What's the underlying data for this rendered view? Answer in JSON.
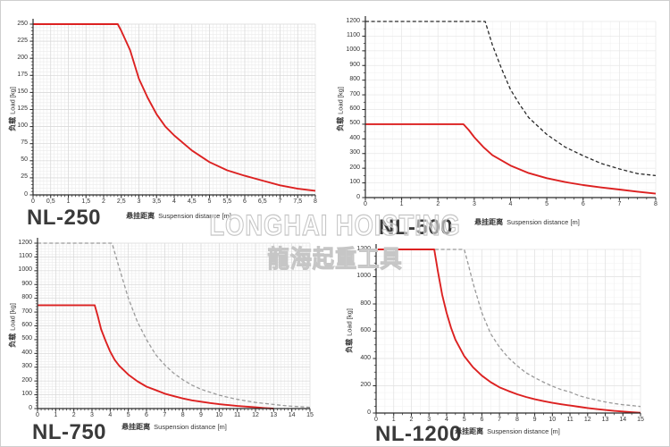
{
  "watermark": {
    "line1": "LONGHAI HOISTING",
    "line2": "龍海起重工具"
  },
  "colors": {
    "red": "#dc2121",
    "dash_dark": "#2a2a2a",
    "dash_gray": "#9a9a9a",
    "axis": "#2b2b2b",
    "text": "#333333",
    "title": "#3a3a3a",
    "watermark_stroke": "#c6c6c6"
  },
  "chart_data": [
    {
      "type": "line",
      "title": "NL-250",
      "xlabel_cn": "悬挂距离",
      "xlabel_en": "Suspension distance [m]",
      "ylabel_cn": "负载",
      "ylabel_en": "Load [kg]",
      "xlim": [
        0,
        8
      ],
      "ylim": [
        0,
        250
      ],
      "xticks": [
        "0",
        "0,5",
        "1",
        "1,5",
        "2",
        "2,5",
        "3",
        "3,5",
        "4",
        "4,5",
        "5",
        "5,5",
        "6",
        "6,5",
        "7",
        "7,5",
        "8"
      ],
      "yticks": [
        0,
        25,
        50,
        75,
        100,
        125,
        150,
        175,
        200,
        225,
        250
      ],
      "x_minor": 5,
      "y_minor": 5,
      "grid": {
        "on": true,
        "minor": "#ebebeb",
        "major": "#d8d8d8"
      },
      "legend": "none",
      "series": [
        {
          "name": "capacity_solid",
          "style": "solid",
          "color": "red",
          "points": [
            [
              0,
              250
            ],
            [
              2.4,
              250
            ],
            [
              2.5,
              240
            ],
            [
              2.75,
              212
            ],
            [
              3,
              170
            ],
            [
              3.25,
              142
            ],
            [
              3.5,
              118
            ],
            [
              3.75,
              100
            ],
            [
              4,
              87
            ],
            [
              4.5,
              65
            ],
            [
              5,
              48
            ],
            [
              5.5,
              36
            ],
            [
              6,
              28
            ],
            [
              6.5,
              21
            ],
            [
              7,
              14
            ],
            [
              7.5,
              9
            ],
            [
              8,
              6
            ]
          ]
        }
      ]
    },
    {
      "type": "line",
      "title": "NL-500",
      "xlabel_cn": "悬挂距离",
      "xlabel_en": "Suspension distance [m]",
      "ylabel_cn": "负载",
      "ylabel_en": "Load [kg]",
      "xlim": [
        0,
        8
      ],
      "ylim": [
        0,
        1200
      ],
      "xticks": [
        "0",
        "1",
        "2",
        "3",
        "4",
        "5",
        "6",
        "7",
        "8"
      ],
      "yticks": [
        0,
        100,
        200,
        300,
        400,
        500,
        600,
        700,
        800,
        900,
        1000,
        1100,
        1200
      ],
      "x_minor": 4,
      "y_minor": 2,
      "grid": {
        "on": true,
        "minor": "#f3f3f3",
        "major": "#e7e7e7"
      },
      "legend": "none",
      "series": [
        {
          "name": "capacity_dashed",
          "style": "dashed",
          "color": "dash_dark",
          "points": [
            [
              0,
              1200
            ],
            [
              3.3,
              1200
            ],
            [
              3.5,
              1040
            ],
            [
              3.75,
              880
            ],
            [
              4,
              735
            ],
            [
              4.25,
              635
            ],
            [
              4.5,
              545
            ],
            [
              5,
              430
            ],
            [
              5.5,
              345
            ],
            [
              6,
              285
            ],
            [
              6.5,
              232
            ],
            [
              7,
              195
            ],
            [
              7.5,
              163
            ],
            [
              8,
              150
            ]
          ]
        },
        {
          "name": "capacity_solid",
          "style": "solid",
          "color": "red",
          "points": [
            [
              0,
              500
            ],
            [
              2.7,
              500
            ],
            [
              2.85,
              460
            ],
            [
              3,
              411
            ],
            [
              3.25,
              345
            ],
            [
              3.5,
              289
            ],
            [
              4,
              218
            ],
            [
              4.5,
              167
            ],
            [
              5,
              132
            ],
            [
              5.5,
              106
            ],
            [
              6,
              85
            ],
            [
              6.5,
              69
            ],
            [
              7,
              55
            ],
            [
              7.5,
              40
            ],
            [
              8,
              27
            ]
          ]
        }
      ]
    },
    {
      "type": "line",
      "title": "NL-750",
      "xlabel_cn": "悬挂距离",
      "xlabel_en": "Suspension distance [m]",
      "ylabel_cn": "负载",
      "ylabel_en": "Load [kg]",
      "xlim": [
        0,
        15
      ],
      "ylim": [
        0,
        1200
      ],
      "xticks": [
        "0",
        "1",
        "2",
        "3",
        "4",
        "5",
        "6",
        "7",
        "8",
        "9",
        "10",
        "11",
        "12",
        "13",
        "14",
        "15"
      ],
      "yticks": [
        0,
        100,
        200,
        300,
        400,
        500,
        600,
        700,
        800,
        900,
        1000,
        1100,
        1200
      ],
      "x_minor": 5,
      "y_minor": 5,
      "grid": {
        "on": true,
        "minor": "#ebebeb",
        "major": "#d8d8d8"
      },
      "legend": "none",
      "series": [
        {
          "name": "capacity_dashed",
          "style": "dashed",
          "color": "dash_gray",
          "points": [
            [
              0,
              1200
            ],
            [
              4.1,
              1200
            ],
            [
              4.5,
              1020
            ],
            [
              5,
              800
            ],
            [
              5.5,
              630
            ],
            [
              6,
              500
            ],
            [
              6.5,
              392
            ],
            [
              7,
              317
            ],
            [
              7.5,
              256
            ],
            [
              8,
              209
            ],
            [
              8.5,
              170
            ],
            [
              9,
              140
            ],
            [
              9.5,
              118
            ],
            [
              10,
              97
            ],
            [
              10.5,
              81
            ],
            [
              11,
              67
            ],
            [
              11.5,
              55
            ],
            [
              12,
              45
            ],
            [
              12.5,
              37
            ],
            [
              13,
              30
            ],
            [
              13.5,
              23
            ],
            [
              14,
              17
            ],
            [
              14.5,
              13
            ],
            [
              15,
              9
            ]
          ]
        },
        {
          "name": "capacity_solid",
          "style": "solid",
          "color": "red",
          "points": [
            [
              0,
              750
            ],
            [
              3.15,
              750
            ],
            [
              3.3,
              680
            ],
            [
              3.5,
              575
            ],
            [
              3.75,
              490
            ],
            [
              4,
              414
            ],
            [
              4.25,
              353
            ],
            [
              4.5,
              310
            ],
            [
              5,
              246
            ],
            [
              5.5,
              198
            ],
            [
              6,
              159
            ],
            [
              6.5,
              134
            ],
            [
              7,
              108
            ],
            [
              7.5,
              90
            ],
            [
              8,
              73
            ],
            [
              8.5,
              60
            ],
            [
              9,
              50
            ],
            [
              9.5,
              40
            ],
            [
              10,
              32
            ],
            [
              10.5,
              25
            ],
            [
              11,
              19
            ],
            [
              11.5,
              14
            ],
            [
              12,
              9
            ],
            [
              12.5,
              4
            ],
            [
              13,
              0
            ]
          ]
        }
      ]
    },
    {
      "type": "line",
      "title": "NL-1200",
      "xlabel_cn": "悬挂距离",
      "xlabel_en": "Suspension distance [m]",
      "ylabel_cn": "负载",
      "ylabel_en": "Load [kg]",
      "xlim": [
        0,
        15
      ],
      "ylim": [
        0,
        1200
      ],
      "xticks": [
        "0",
        "1",
        "2",
        "3",
        "4",
        "5",
        "6",
        "7",
        "8",
        "9",
        "10",
        "11",
        "12",
        "13",
        "14",
        "15"
      ],
      "yticks": [
        0,
        200,
        400,
        600,
        800,
        1000,
        1200
      ],
      "x_minor": 2,
      "y_minor": 4,
      "grid": {
        "on": true,
        "minor": "#f0f0f0",
        "major": "#e2e2e2"
      },
      "legend": "none",
      "series": [
        {
          "name": "capacity_dashed",
          "style": "dashed",
          "color": "dash_gray",
          "points": [
            [
              0,
              1200
            ],
            [
              5,
              1200
            ],
            [
              5.25,
              1080
            ],
            [
              5.5,
              954
            ],
            [
              6,
              735
            ],
            [
              6.5,
              581
            ],
            [
              7,
              483
            ],
            [
              7.5,
              406
            ],
            [
              8,
              347
            ],
            [
              8.5,
              296
            ],
            [
              9,
              259
            ],
            [
              9.5,
              226
            ],
            [
              10,
              197
            ],
            [
              10.5,
              172
            ],
            [
              11,
              154
            ],
            [
              11.5,
              128
            ],
            [
              12,
              110
            ],
            [
              12.5,
              95
            ],
            [
              13,
              81
            ],
            [
              13.5,
              70
            ],
            [
              14,
              61
            ],
            [
              14.5,
              55
            ],
            [
              15,
              48
            ]
          ]
        },
        {
          "name": "capacity_solid",
          "style": "solid",
          "color": "red",
          "points": [
            [
              0,
              1200
            ],
            [
              3.3,
              1200
            ],
            [
              3.5,
              1042
            ],
            [
              3.75,
              867
            ],
            [
              4,
              735
            ],
            [
              4.25,
              625
            ],
            [
              4.5,
              538
            ],
            [
              5,
              417
            ],
            [
              5.5,
              336
            ],
            [
              6,
              274
            ],
            [
              6.5,
              226
            ],
            [
              7,
              189
            ],
            [
              7.5,
              162
            ],
            [
              8,
              138
            ],
            [
              8.5,
              118
            ],
            [
              9,
              101
            ],
            [
              9.5,
              87
            ],
            [
              10,
              75
            ],
            [
              10.5,
              64
            ],
            [
              11,
              55
            ],
            [
              11.5,
              46
            ],
            [
              12,
              37
            ],
            [
              12.5,
              29
            ],
            [
              13,
              22
            ],
            [
              13.5,
              16
            ],
            [
              14,
              11
            ],
            [
              14.5,
              6
            ],
            [
              15,
              2
            ]
          ]
        }
      ]
    }
  ]
}
